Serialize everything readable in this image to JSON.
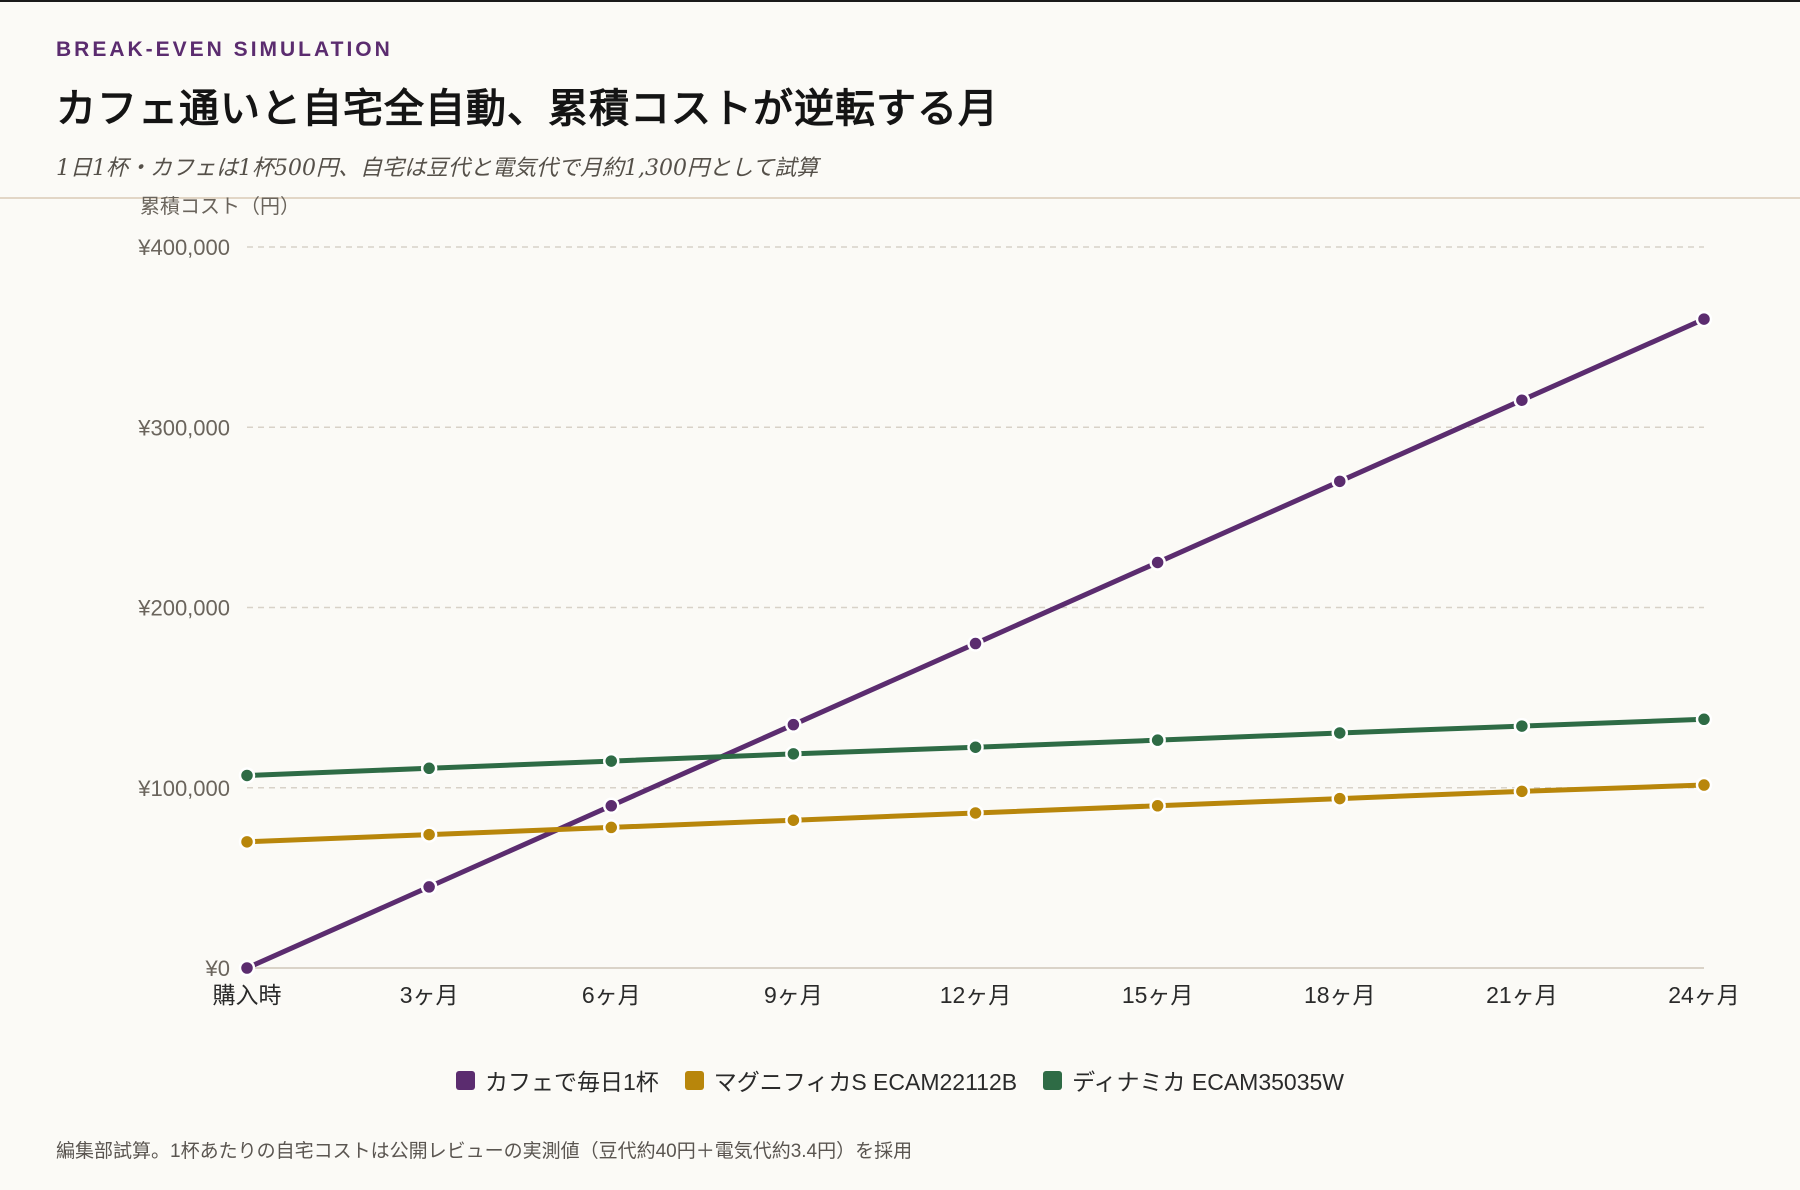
{
  "header": {
    "eyebrow": "BREAK-EVEN SIMULATION",
    "title": "カフェ通いと自宅全自動、累積コストが逆転する月",
    "subtitle": "1日1杯・カフェは1杯500円、自宅は豆代と電気代で月約1,300円として試算"
  },
  "colors": {
    "cafe": "#5b2c6f",
    "magnifica": "#b8860b",
    "dinamica": "#2e6b45",
    "grid": "#d8d2c8",
    "axis_text": "#6a645c"
  },
  "chart_data": {
    "type": "line",
    "ylabel": "累積コスト（円）",
    "categories": [
      "購入時",
      "3ヶ月",
      "6ヶ月",
      "9ヶ月",
      "12ヶ月",
      "15ヶ月",
      "18ヶ月",
      "21ヶ月",
      "24ヶ月"
    ],
    "y_ticks": [
      0,
      100000,
      200000,
      300000,
      400000
    ],
    "y_tick_labels": [
      "¥0",
      "¥100,000",
      "¥200,000",
      "¥300,000",
      "¥400,000"
    ],
    "ylim": [
      0,
      400000
    ],
    "grid": true,
    "legend_position": "bottom",
    "series": [
      {
        "name": "カフェで毎日1杯",
        "color_key": "cafe",
        "values": [
          0,
          45000,
          90000,
          135000,
          180000,
          225000,
          270000,
          315000,
          360000
        ]
      },
      {
        "name": "マグニフィカS ECAM22112B",
        "color_key": "magnifica",
        "values": [
          70000,
          74000,
          78000,
          82000,
          86000,
          90000,
          94000,
          98000,
          101500
        ]
      },
      {
        "name": "ディナミカ ECAM35035W",
        "color_key": "dinamica",
        "values": [
          106800,
          110800,
          114800,
          118800,
          122500,
          126400,
          130400,
          134200,
          138000
        ]
      }
    ]
  },
  "footnote": "編集部試算。1杯あたりの自宅コストは公開レビューの実測値（豆代約40円＋電気代約3.4円）を採用"
}
